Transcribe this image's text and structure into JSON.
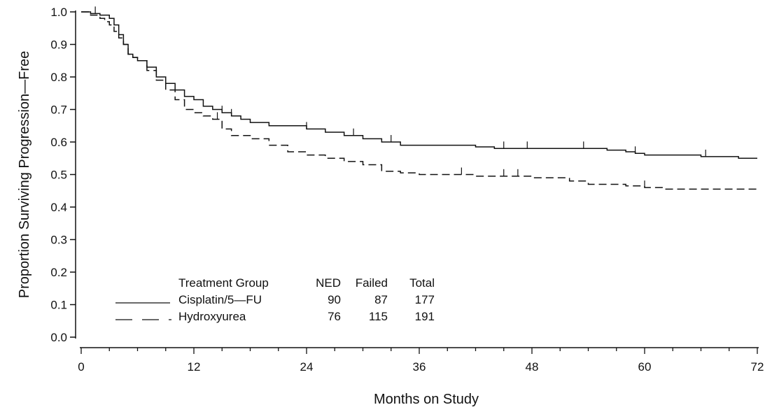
{
  "chart_data": {
    "type": "line",
    "title": "",
    "xlabel": "Months on Study",
    "ylabel": "Proportion Surviving Progression—Free",
    "xlim": [
      0,
      72
    ],
    "ylim": [
      0.0,
      1.0
    ],
    "xticks": [
      0,
      12,
      24,
      36,
      48,
      60,
      72
    ],
    "yticks": [
      0.0,
      0.1,
      0.2,
      0.3,
      0.4,
      0.5,
      0.6,
      0.7,
      0.8,
      0.9,
      1.0
    ],
    "ytick_labels": [
      "0.0",
      "0.1",
      "0.2",
      "0.3",
      "0.4",
      "0.5",
      "0.6",
      "0.7",
      "0.8",
      "0.9",
      "1.0"
    ],
    "grid": false,
    "legend": {
      "placement": "bottom-left",
      "headers": [
        "Treatment Group",
        "NED",
        "Failed",
        "Total"
      ],
      "rows": [
        {
          "name": "Cisplatin/5—FU",
          "style": "solid",
          "ned": "90",
          "failed": "87",
          "total": "177"
        },
        {
          "name": "Hydroxyurea",
          "style": "dashed",
          "ned": "76",
          "failed": "115",
          "total": "191"
        }
      ]
    },
    "series": [
      {
        "name": "Cisplatin/5—FU",
        "style": "solid",
        "x": [
          0,
          1,
          2,
          3,
          3.5,
          4,
          4.5,
          5,
          5.5,
          6,
          7,
          8,
          9,
          10,
          11,
          12,
          13,
          14,
          15,
          16,
          17,
          18,
          20,
          22,
          24,
          26,
          28,
          30,
          32,
          34,
          36,
          38,
          40,
          42,
          44,
          46,
          48,
          50,
          52,
          54,
          56,
          58,
          59,
          60,
          62,
          64,
          66,
          68,
          70,
          72
        ],
        "y": [
          1.0,
          0.995,
          0.99,
          0.98,
          0.96,
          0.93,
          0.9,
          0.87,
          0.86,
          0.85,
          0.83,
          0.8,
          0.78,
          0.76,
          0.74,
          0.73,
          0.71,
          0.7,
          0.69,
          0.68,
          0.67,
          0.66,
          0.65,
          0.65,
          0.64,
          0.63,
          0.62,
          0.61,
          0.6,
          0.59,
          0.59,
          0.59,
          0.59,
          0.585,
          0.58,
          0.58,
          0.58,
          0.58,
          0.58,
          0.58,
          0.575,
          0.57,
          0.565,
          0.56,
          0.56,
          0.56,
          0.555,
          0.555,
          0.55,
          0.55
        ],
        "censor_x": [
          1.5,
          7,
          15,
          16,
          24,
          29,
          33,
          45,
          47.5,
          53.5,
          59,
          66.5
        ]
      },
      {
        "name": "Hydroxyurea",
        "style": "dashed",
        "x": [
          0,
          1,
          2,
          2.5,
          3,
          3.5,
          4,
          4.5,
          5,
          5.5,
          6,
          7,
          8,
          9,
          10,
          11,
          12,
          13,
          14,
          15,
          16,
          18,
          20,
          22,
          24,
          26,
          28,
          30,
          32,
          34,
          36,
          38,
          40,
          42,
          44,
          46,
          48,
          50,
          52,
          54,
          56,
          58,
          60,
          62,
          64,
          66,
          68,
          70,
          72
        ],
        "y": [
          1.0,
          0.99,
          0.98,
          0.97,
          0.96,
          0.94,
          0.92,
          0.9,
          0.87,
          0.86,
          0.85,
          0.82,
          0.79,
          0.76,
          0.73,
          0.7,
          0.69,
          0.68,
          0.67,
          0.64,
          0.62,
          0.61,
          0.59,
          0.57,
          0.56,
          0.55,
          0.54,
          0.53,
          0.51,
          0.505,
          0.5,
          0.5,
          0.5,
          0.495,
          0.495,
          0.495,
          0.49,
          0.49,
          0.48,
          0.47,
          0.47,
          0.465,
          0.46,
          0.455,
          0.455,
          0.455,
          0.455,
          0.455,
          0.455
        ],
        "censor_x": [
          14.5,
          40.5,
          45,
          46.5,
          60
        ]
      }
    ]
  }
}
